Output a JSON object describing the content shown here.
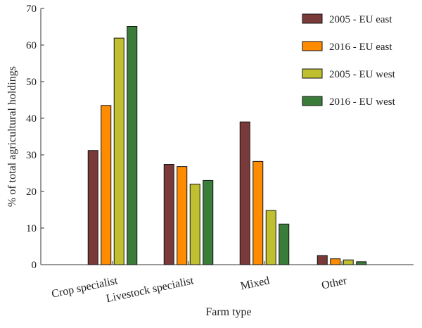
{
  "chart_data": {
    "type": "bar",
    "categories": [
      "Crop specialist",
      "Livestock specialist",
      "Mixed",
      "Other"
    ],
    "series": [
      {
        "name": "2005 - EU east",
        "color": "#7b3a3a",
        "values": [
          31.2,
          27.4,
          39.0,
          2.5
        ]
      },
      {
        "name": "2016 - EU east",
        "color": "#ff8c00",
        "values": [
          43.5,
          26.8,
          28.2,
          1.6
        ]
      },
      {
        "name": "2005 - EU west",
        "color": "#bfbf30",
        "values": [
          61.9,
          22.0,
          14.8,
          1.3
        ]
      },
      {
        "name": "2016 - EU west",
        "color": "#3a7d3a",
        "values": [
          65.1,
          23.0,
          11.1,
          0.8
        ]
      }
    ],
    "xlabel": "Farm type",
    "ylabel": "% of total agricultural holdings",
    "ylim": [
      0,
      70
    ],
    "yticks": [
      "0",
      "10",
      "20",
      "30",
      "40",
      "50",
      "60",
      "70"
    ],
    "grid": false,
    "legend": "top-right"
  }
}
